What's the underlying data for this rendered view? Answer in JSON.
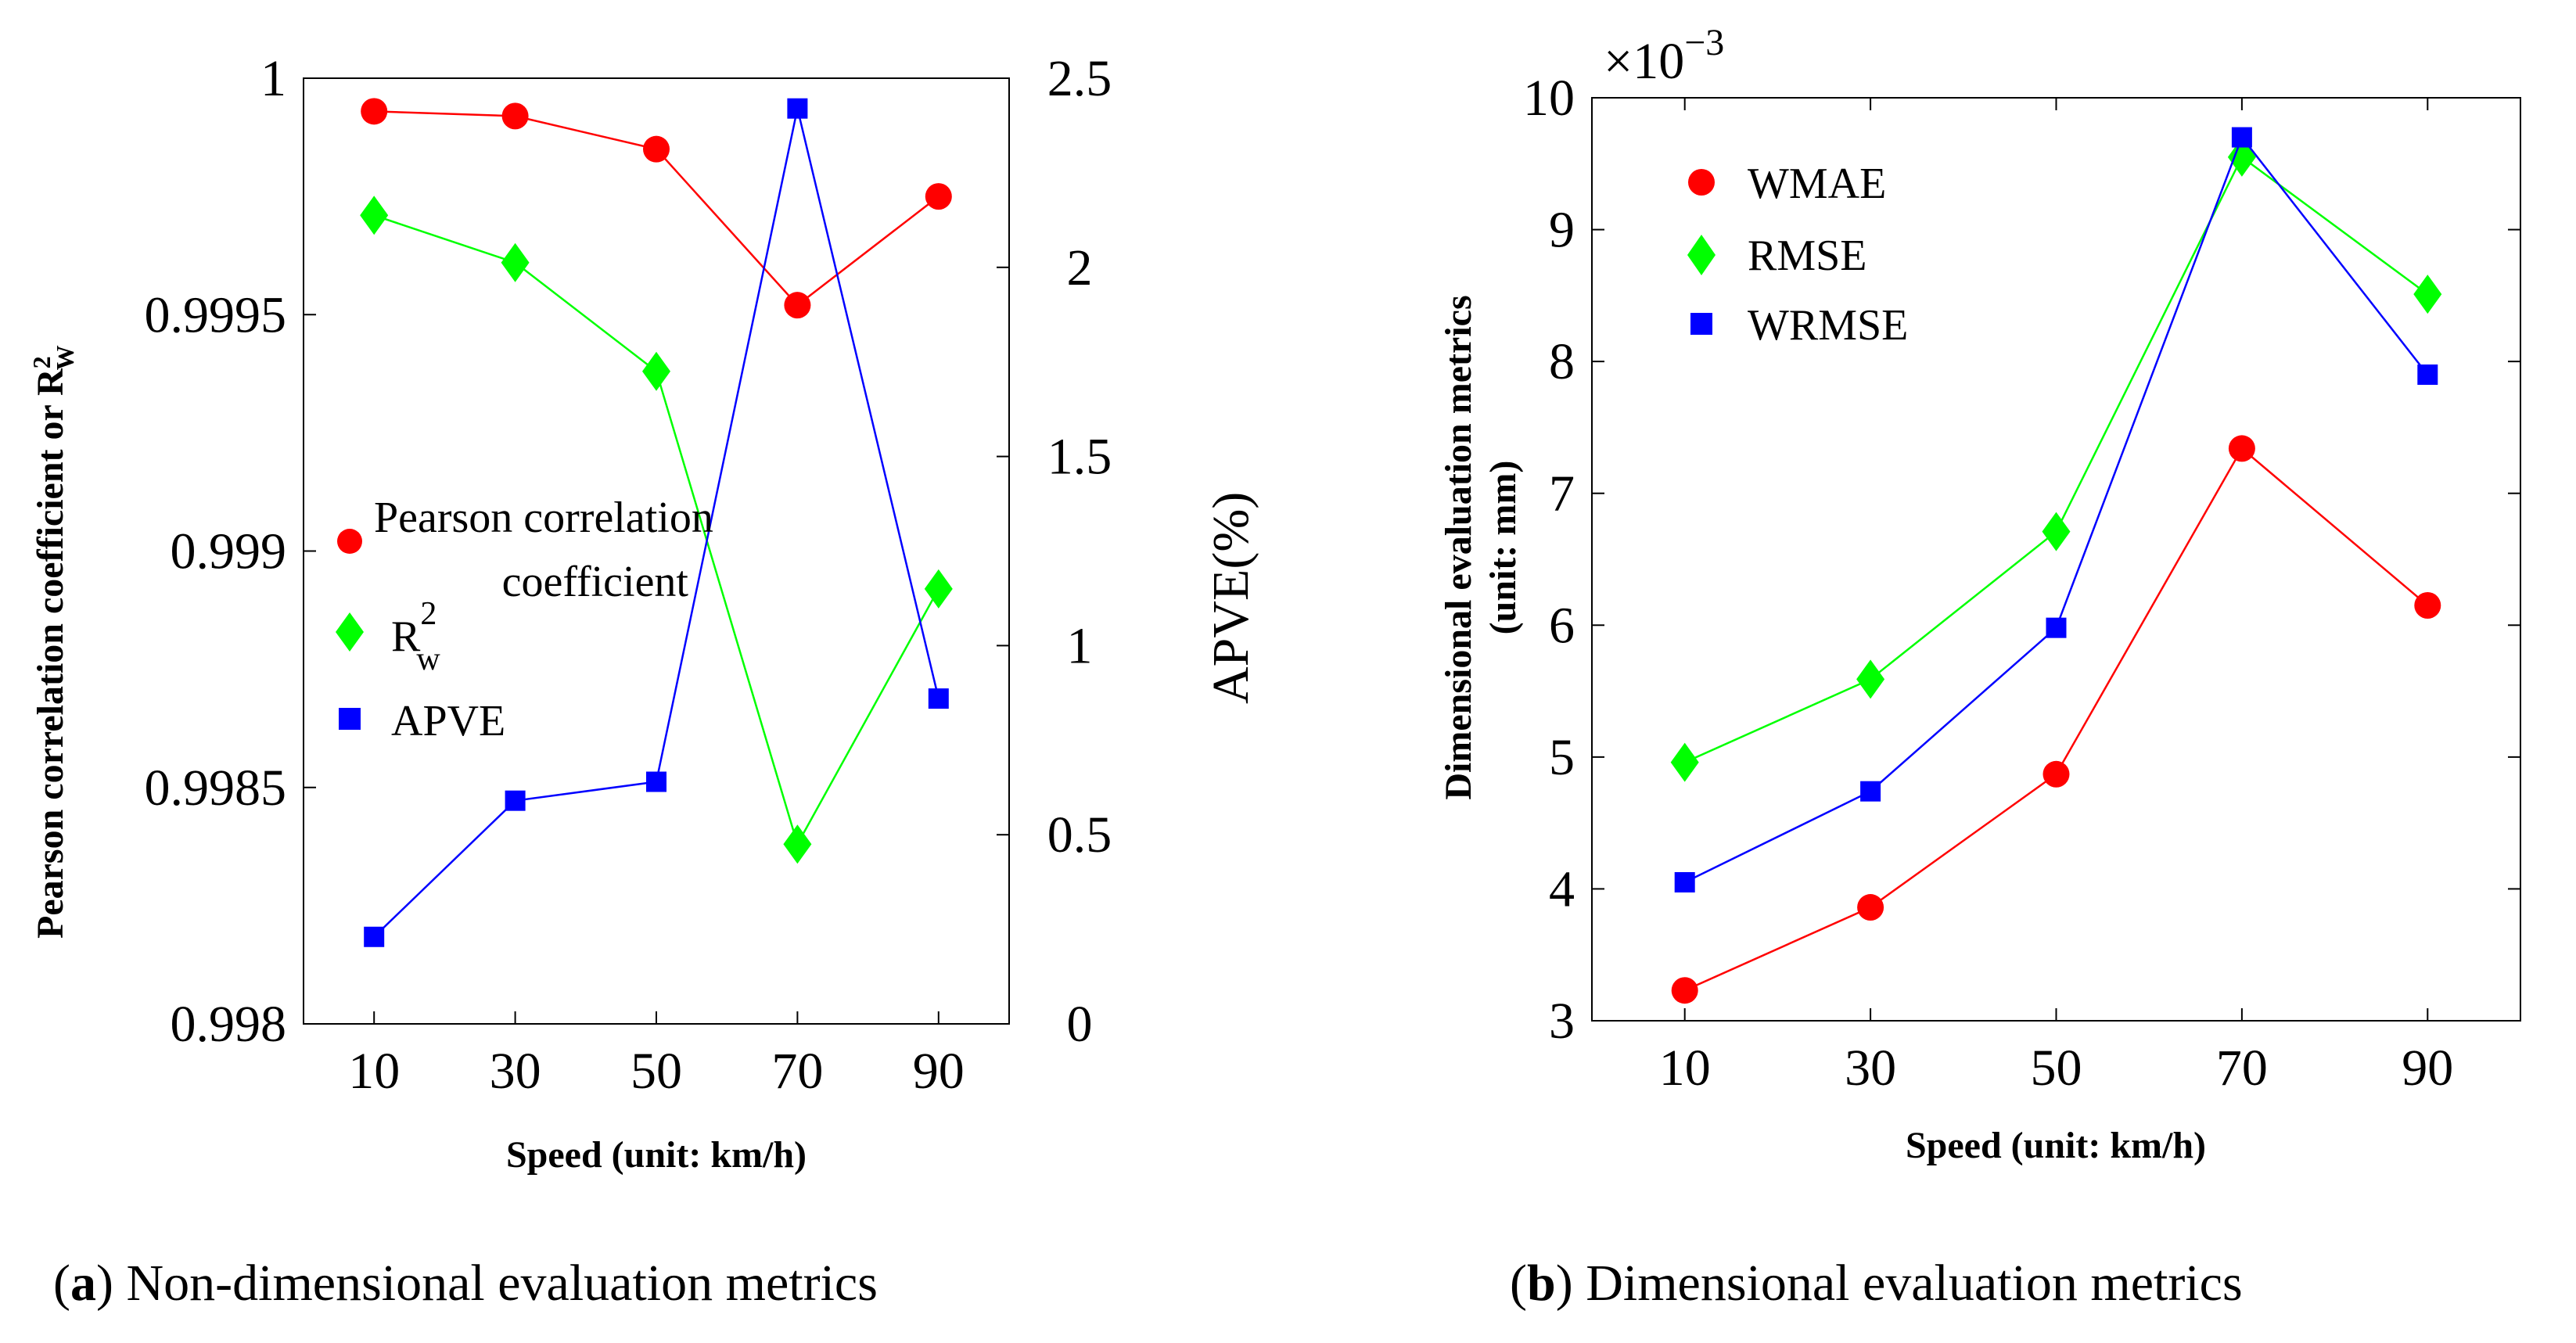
{
  "panel_a": {
    "caption_letter": "a",
    "caption_text": "Non-dimensional evaluation metrics",
    "ylabel_left": "Pearson correlation coefficient or R",
    "ylabel_left_sup": "2",
    "ylabel_left_sub": "W",
    "ylabel_right": "APVE(%)",
    "xlabel": "Speed (unit: km/h)",
    "legend": {
      "pearson_line1": "Pearson correlation",
      "pearson_line2": "coefficient",
      "r2_base": "R",
      "r2_sup": "2",
      "r2_sub": "w",
      "apve": "APVE"
    }
  },
  "panel_b": {
    "caption_letter": "b",
    "caption_text": "Dimensional evaluation metrics",
    "ylabel_line1": "Dimensional evaluation metrics",
    "ylabel_line2": "(unit: mm)",
    "xlabel": "Speed (unit: km/h)",
    "exponent_base": "×10",
    "exponent_power": "−3",
    "legend": {
      "wmae": "WMAE",
      "rmse": "RMSE",
      "wrmse": "WRMSE"
    }
  },
  "colors": {
    "red": "#ff0000",
    "green": "#00ff00",
    "blue": "#0000ff"
  },
  "chart_data": [
    {
      "type": "line",
      "id": "a",
      "categories": [
        "10",
        "30",
        "50",
        "70",
        "90"
      ],
      "x": [
        10,
        30,
        50,
        70,
        90
      ],
      "xlim": [
        0,
        100
      ],
      "ylim_left": [
        0.998,
        1
      ],
      "yticks_left": [
        "0.998",
        "0.9985",
        "0.999",
        "0.9995",
        "1"
      ],
      "ylim_right": [
        0,
        2.5
      ],
      "yticks_right": [
        "0",
        "0.5",
        "1",
        "1.5",
        "2",
        "2.5"
      ],
      "series": [
        {
          "name": "Pearson correlation coefficient",
          "axis": "left",
          "color": "#ff0000",
          "marker": "circle",
          "values": [
            0.99993,
            0.99992,
            0.99985,
            0.99952,
            0.99975
          ]
        },
        {
          "name": "R_w^2",
          "axis": "left",
          "color": "#00ff00",
          "marker": "diamond",
          "values": [
            0.99971,
            0.99961,
            0.99938,
            0.99838,
            0.99892
          ]
        },
        {
          "name": "APVE",
          "axis": "right",
          "color": "#0000ff",
          "marker": "square",
          "values": [
            0.23,
            0.59,
            0.64,
            2.42,
            0.86
          ]
        }
      ]
    },
    {
      "type": "line",
      "id": "b",
      "categories": [
        "10",
        "30",
        "50",
        "70",
        "90"
      ],
      "x": [
        10,
        30,
        50,
        70,
        90
      ],
      "xlim": [
        0,
        100
      ],
      "ylim": [
        3,
        10
      ],
      "yticks": [
        "3",
        "4",
        "5",
        "6",
        "7",
        "8",
        "9",
        "10"
      ],
      "y_multiplier": "1e-3",
      "series": [
        {
          "name": "WMAE",
          "color": "#ff0000",
          "marker": "circle",
          "values": [
            3.23,
            3.86,
            4.87,
            7.34,
            6.15
          ]
        },
        {
          "name": "RMSE",
          "color": "#00ff00",
          "marker": "diamond",
          "values": [
            4.96,
            5.59,
            6.71,
            9.55,
            8.51
          ]
        },
        {
          "name": "WRMSE",
          "color": "#0000ff",
          "marker": "square",
          "values": [
            4.05,
            4.74,
            5.98,
            9.7,
            7.9
          ]
        }
      ]
    }
  ]
}
